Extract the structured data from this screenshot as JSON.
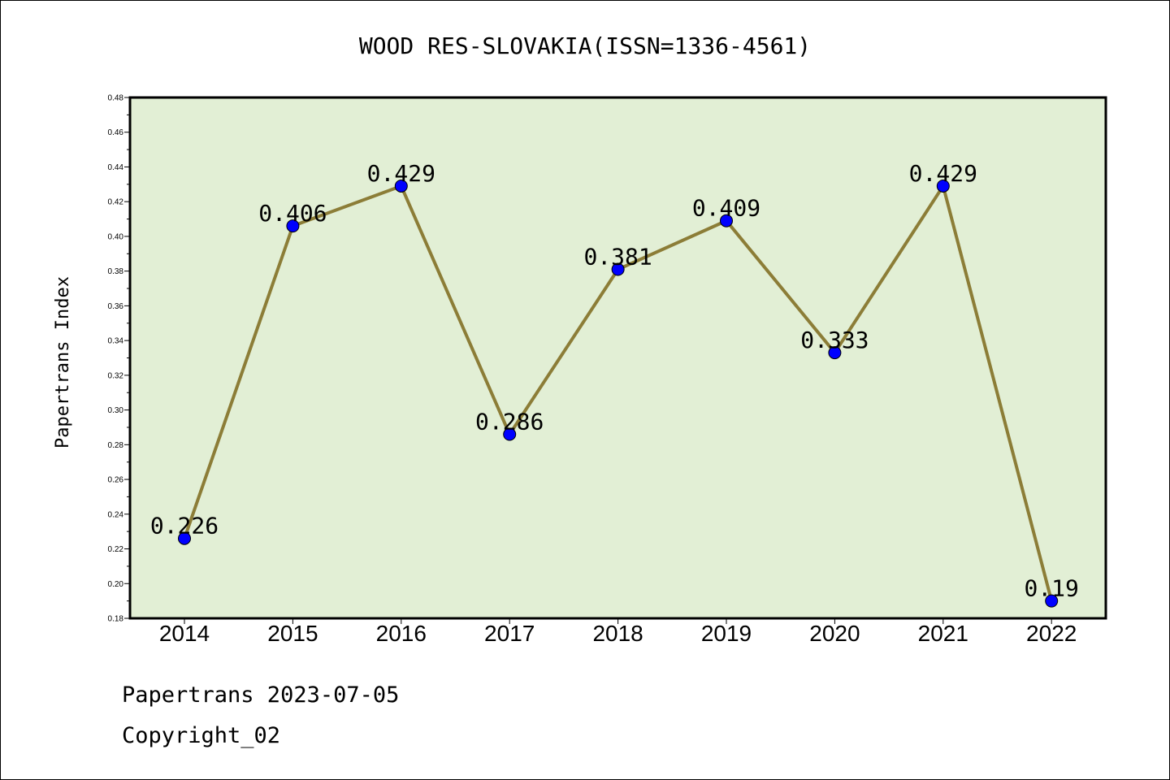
{
  "chart_data": {
    "type": "line",
    "title": "WOOD RES-SLOVAKIA(ISSN=1336-4561)",
    "xlabel": "",
    "ylabel": "Papertrans Index",
    "categories": [
      "2014",
      "2015",
      "2016",
      "2017",
      "2018",
      "2019",
      "2020",
      "2021",
      "2022"
    ],
    "series": [
      {
        "values": [
          0.226,
          0.406,
          0.429,
          0.286,
          0.381,
          0.409,
          0.333,
          0.429,
          0.19
        ],
        "labels": [
          "0.226",
          "0.406",
          "0.429",
          "0.286",
          "0.381",
          "0.409",
          "0.333",
          "0.429",
          "0.19"
        ]
      }
    ],
    "ylim": [
      0.18,
      0.48
    ],
    "yticks": [
      "0.18",
      "0.20",
      "0.22",
      "0.24",
      "0.26",
      "0.28",
      "0.30",
      "0.32",
      "0.34",
      "0.36",
      "0.38",
      "0.40",
      "0.42",
      "0.44",
      "0.46",
      "0.48"
    ],
    "grid": false,
    "colors": {
      "plot_background": "#e2efd5",
      "line": "#8c7d37",
      "marker": "#0000ff"
    }
  },
  "footer": {
    "line1": "Papertrans 2023-07-05",
    "line2": "Copyright_02"
  }
}
